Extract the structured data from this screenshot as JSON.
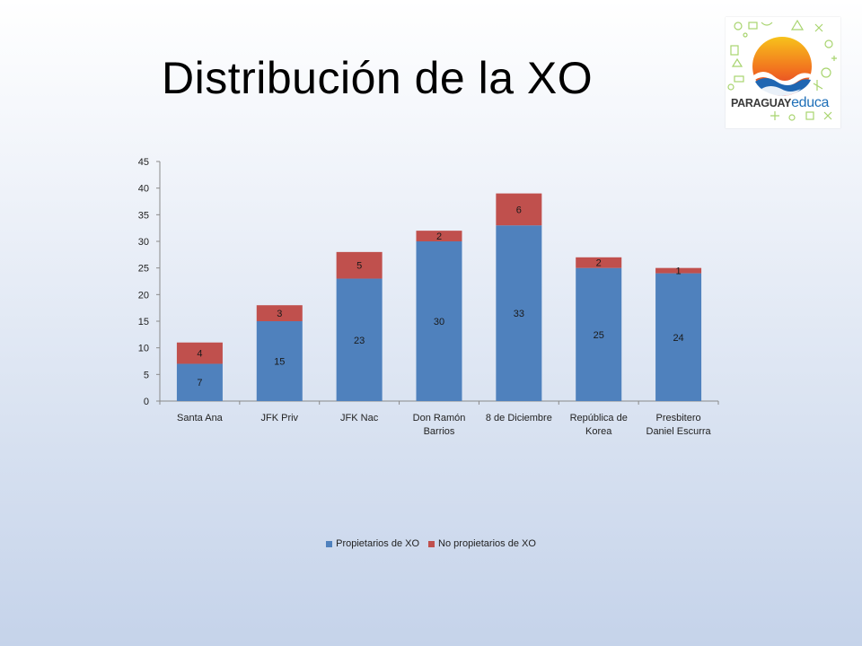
{
  "slide": {
    "title": "Distribución de la XO"
  },
  "logo": {
    "text_main": "PARAGUAY",
    "text_accent": "educa"
  },
  "colors": {
    "propietarios": "#4f81bd",
    "no_propietarios": "#c0504d"
  },
  "chart_data": {
    "type": "bar",
    "stacked": true,
    "categories": [
      [
        "Santa Ana"
      ],
      [
        "JFK Priv"
      ],
      [
        "JFK Nac"
      ],
      [
        "Don Ramón",
        "Barrios"
      ],
      [
        "8 de Diciembre"
      ],
      [
        "República de",
        "Korea"
      ],
      [
        "Presbitero",
        "Daniel Escurra"
      ]
    ],
    "series": [
      {
        "name": "Propietarios de XO",
        "values": [
          7,
          15,
          23,
          30,
          33,
          25,
          24
        ]
      },
      {
        "name": "No propietarios de XO",
        "values": [
          4,
          3,
          5,
          2,
          6,
          2,
          1
        ]
      }
    ],
    "ylim": [
      0,
      45
    ],
    "yticks": [
      0,
      5,
      10,
      15,
      20,
      25,
      30,
      35,
      40,
      45
    ],
    "legend_position": "bottom",
    "grid": false
  }
}
